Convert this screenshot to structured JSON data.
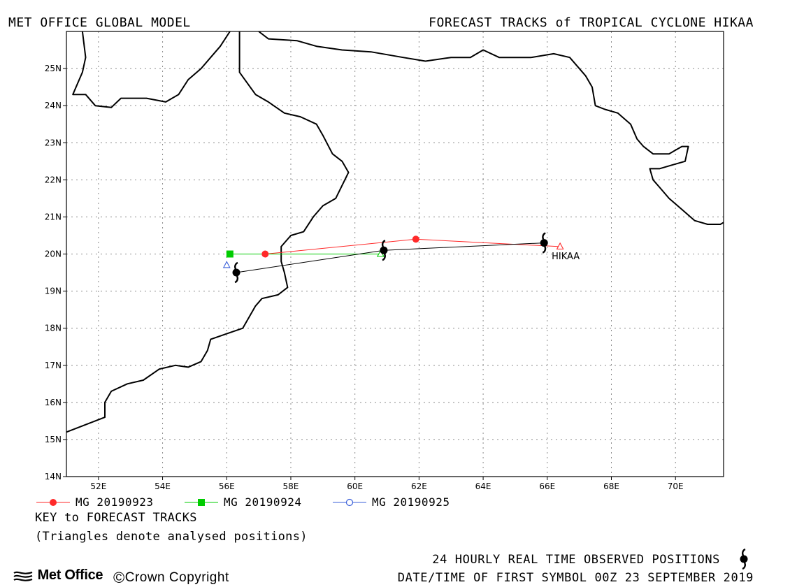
{
  "header": {
    "left": "MET OFFICE GLOBAL MODEL",
    "right": "FORECAST TRACKS of TROPICAL CYCLONE HIKAA"
  },
  "map": {
    "lon_range": [
      51,
      71.5
    ],
    "lat_range": [
      14,
      26
    ],
    "lon_ticks": [
      "52E",
      "54E",
      "56E",
      "58E",
      "60E",
      "62E",
      "64E",
      "66E",
      "68E",
      "70E"
    ],
    "lat_ticks": [
      "14N",
      "15N",
      "16N",
      "17N",
      "18N",
      "19N",
      "20N",
      "21N",
      "22N",
      "23N",
      "24N",
      "25N"
    ],
    "grid": "dotted",
    "storm_label": "HIKAA"
  },
  "chart_data": {
    "type": "scatter",
    "title": "FORECAST TRACKS of TROPICAL CYCLONE HIKAA",
    "xlabel": "",
    "ylabel": "",
    "xlim": [
      51,
      71.5
    ],
    "ylim": [
      14,
      26
    ],
    "grid": true,
    "series": [
      {
        "name": "MG 20190923",
        "color": "#ff2a2a",
        "marker": "circle",
        "points": [
          [
            66.4,
            20.2
          ],
          [
            61.9,
            20.4
          ],
          [
            57.2,
            20.0
          ]
        ]
      },
      {
        "name": "MG 20190924",
        "color": "#00cc00",
        "marker": "square",
        "points": [
          [
            60.8,
            20.0
          ],
          [
            56.1,
            20.0
          ]
        ]
      },
      {
        "name": "MG 20190925",
        "color": "#3a5fd9",
        "marker": "circle-open",
        "points": [
          [
            56.0,
            19.7
          ]
        ]
      },
      {
        "name": "observed",
        "color": "#000000",
        "marker": "cyclone",
        "points": [
          [
            65.9,
            20.3
          ],
          [
            60.9,
            20.1
          ],
          [
            56.3,
            19.5
          ]
        ]
      }
    ],
    "analysed_positions": [
      {
        "color": "#ff2a2a",
        "point": [
          66.4,
          20.2
        ]
      },
      {
        "color": "#00cc00",
        "point": [
          60.8,
          20.0
        ]
      },
      {
        "color": "#3a5fd9",
        "point": [
          56.0,
          19.7
        ]
      }
    ]
  },
  "coastline": [
    [
      [
        51.0,
        15.2
      ],
      [
        51.6,
        15.4
      ],
      [
        52.2,
        15.6
      ],
      [
        52.2,
        16.0
      ],
      [
        52.4,
        16.3
      ],
      [
        52.9,
        16.5
      ],
      [
        53.4,
        16.6
      ],
      [
        53.9,
        16.9
      ],
      [
        54.4,
        17.0
      ],
      [
        54.8,
        16.95
      ],
      [
        55.2,
        17.1
      ],
      [
        55.4,
        17.4
      ],
      [
        55.5,
        17.7
      ],
      [
        56.0,
        17.85
      ],
      [
        56.5,
        18.0
      ],
      [
        56.9,
        18.6
      ],
      [
        57.1,
        18.8
      ],
      [
        57.6,
        18.9
      ],
      [
        57.9,
        19.1
      ],
      [
        57.8,
        19.5
      ],
      [
        57.7,
        19.8
      ],
      [
        57.7,
        20.2
      ],
      [
        58.0,
        20.5
      ],
      [
        58.4,
        20.6
      ],
      [
        58.7,
        21.0
      ],
      [
        59.0,
        21.3
      ],
      [
        59.4,
        21.5
      ],
      [
        59.8,
        22.2
      ],
      [
        59.6,
        22.5
      ],
      [
        59.3,
        22.7
      ],
      [
        59.0,
        23.2
      ],
      [
        58.8,
        23.5
      ],
      [
        58.3,
        23.7
      ],
      [
        57.8,
        23.8
      ],
      [
        57.3,
        24.1
      ],
      [
        56.9,
        24.3
      ],
      [
        56.4,
        24.9
      ],
      [
        56.4,
        25.5
      ],
      [
        56.4,
        26.0
      ]
    ],
    [
      [
        56.1,
        26.0
      ],
      [
        55.8,
        25.6
      ],
      [
        55.5,
        25.3
      ],
      [
        55.2,
        25.0
      ],
      [
        54.8,
        24.7
      ],
      [
        54.5,
        24.3
      ],
      [
        54.1,
        24.1
      ],
      [
        53.5,
        24.2
      ],
      [
        52.7,
        24.2
      ],
      [
        52.4,
        23.95
      ],
      [
        51.9,
        24.0
      ],
      [
        51.6,
        24.3
      ],
      [
        51.2,
        24.3
      ],
      [
        51.5,
        24.9
      ],
      [
        51.6,
        25.3
      ],
      [
        51.5,
        26.0
      ]
    ],
    [
      [
        57.0,
        26.0
      ],
      [
        57.3,
        25.8
      ],
      [
        58.2,
        25.75
      ],
      [
        58.8,
        25.6
      ],
      [
        59.6,
        25.5
      ],
      [
        60.5,
        25.45
      ],
      [
        61.5,
        25.3
      ],
      [
        62.2,
        25.2
      ],
      [
        63.0,
        25.3
      ],
      [
        63.6,
        25.3
      ],
      [
        64.0,
        25.5
      ],
      [
        64.5,
        25.3
      ],
      [
        65.0,
        25.3
      ],
      [
        65.5,
        25.3
      ],
      [
        66.2,
        25.4
      ],
      [
        66.7,
        25.3
      ],
      [
        66.9,
        25.1
      ],
      [
        67.2,
        24.8
      ],
      [
        67.4,
        24.5
      ],
      [
        67.5,
        24.0
      ],
      [
        67.8,
        23.9
      ],
      [
        68.2,
        23.8
      ],
      [
        68.6,
        23.5
      ],
      [
        68.8,
        23.1
      ],
      [
        69.0,
        22.9
      ],
      [
        69.3,
        22.7
      ],
      [
        69.8,
        22.7
      ],
      [
        70.0,
        22.8
      ],
      [
        70.2,
        22.9
      ],
      [
        70.4,
        22.9
      ],
      [
        70.3,
        22.5
      ],
      [
        69.9,
        22.4
      ],
      [
        69.5,
        22.3
      ],
      [
        69.2,
        22.3
      ],
      [
        69.3,
        22.0
      ],
      [
        69.5,
        21.8
      ],
      [
        69.8,
        21.5
      ],
      [
        70.2,
        21.2
      ],
      [
        70.6,
        20.9
      ],
      [
        71.0,
        20.8
      ],
      [
        71.4,
        20.8
      ],
      [
        71.5,
        20.85
      ]
    ]
  ],
  "legend": [
    {
      "label": "MG 20190923",
      "color": "#ff2a2a",
      "marker": "circle"
    },
    {
      "label": "MG 20190924",
      "color": "#00cc00",
      "marker": "square"
    },
    {
      "label": "MG 20190925",
      "color": "#3a5fd9",
      "marker": "circle-open"
    }
  ],
  "key": {
    "title": "KEY to FORECAST TRACKS",
    "note": "(Triangles denote analysed positions)"
  },
  "footer": {
    "observed_label": "24 HOURLY REAL TIME OBSERVED POSITIONS",
    "first_symbol": "DATE/TIME OF FIRST SYMBOL 00Z 23 SEPTEMBER 2019",
    "brand": "Met Office",
    "copyright_symbol": "©",
    "copyright": "Crown Copyright"
  },
  "icons": [
    "cyclone-icon",
    "met-office-logo-icon",
    "triangle-icon"
  ]
}
